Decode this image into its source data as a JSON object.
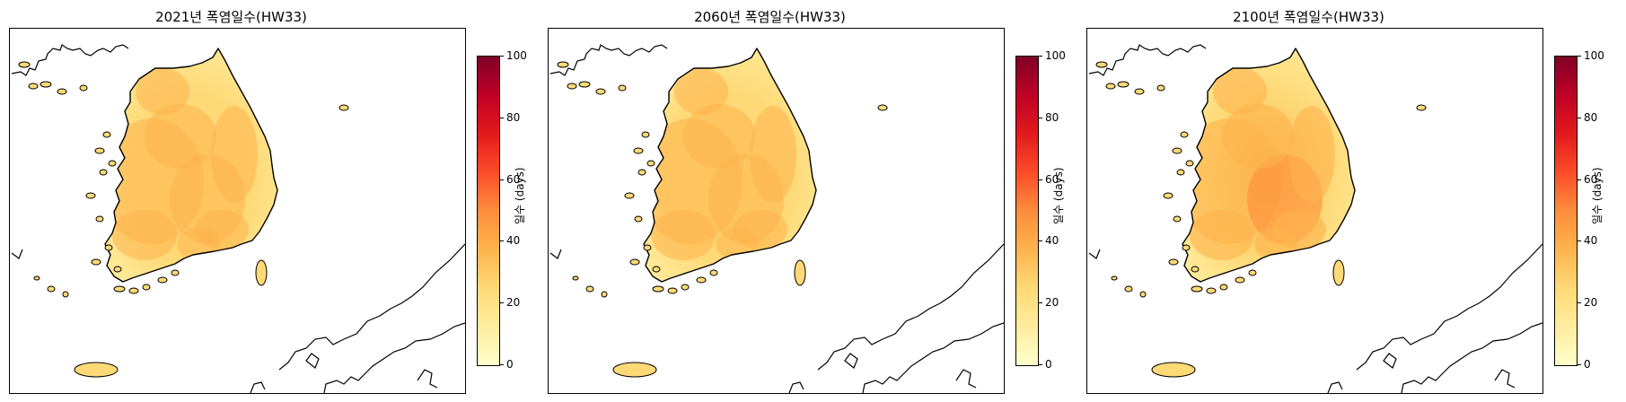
{
  "panels": [
    {
      "title": "2021년 폭염일수(HW33)",
      "intensity": 0.3
    },
    {
      "title": "2060년 폭염일수(HW33)",
      "intensity": 0.34
    },
    {
      "title": "2100년 폭염일수(HW33)",
      "intensity": 0.42
    }
  ],
  "colorbar": {
    "label": "일수 (days)",
    "ticks": [
      "0",
      "20",
      "40",
      "60",
      "80",
      "100"
    ],
    "min": 0,
    "max": 100,
    "colormap": [
      "#ffffcc",
      "#ffeda0",
      "#fed976",
      "#feb24c",
      "#fd8d3c",
      "#fc4e2a",
      "#e31a1c",
      "#bd0026",
      "#800026"
    ]
  }
}
